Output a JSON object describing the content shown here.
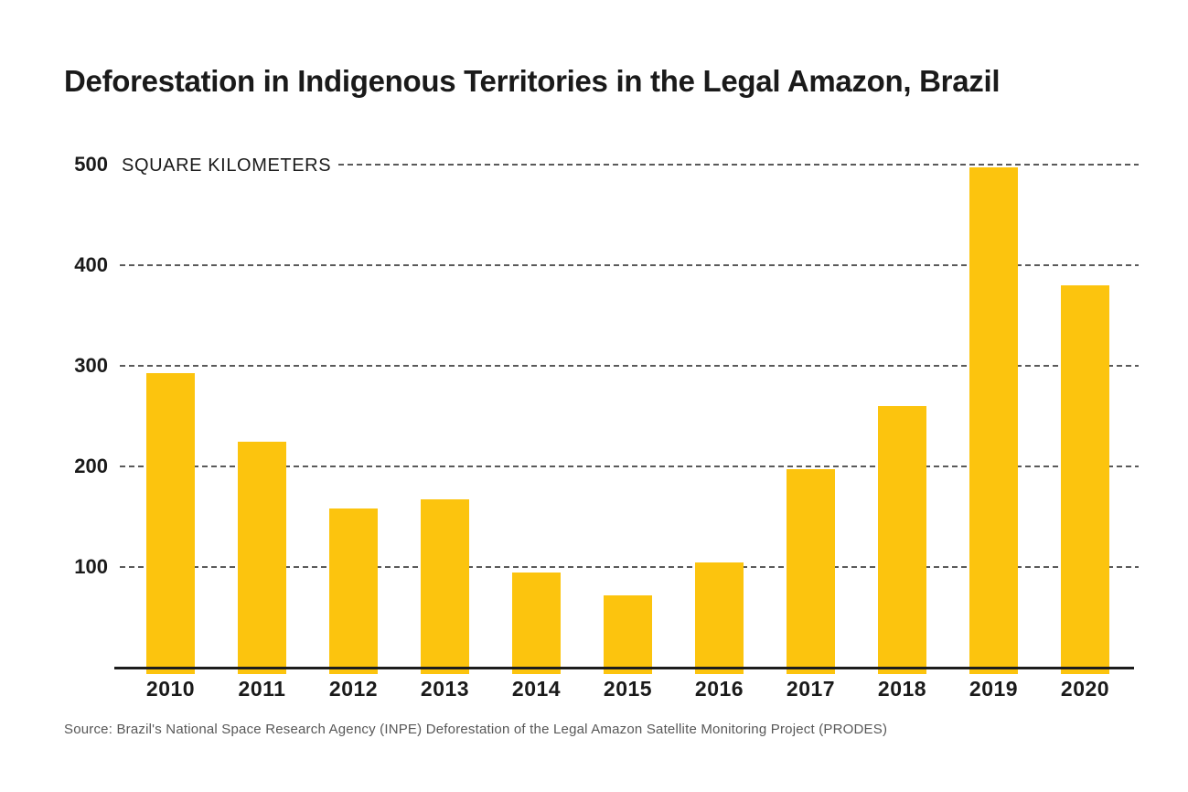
{
  "title": "Deforestation in Indigenous Territories in the Legal Amazon, Brazil",
  "unit_label": "SQUARE KILOMETERS",
  "source": "Source: Brazil's National Space Research Agency (INPE) Deforestation of the Legal Amazon Satellite Monitoring Project (PRODES)",
  "colors": {
    "bar": "#FCC40E",
    "grid": "#5a5a5a",
    "axis": "#1c1c1c",
    "text": "#1a1a1a",
    "source_text": "#575757"
  },
  "chart_data": {
    "type": "bar",
    "title": "Deforestation in Indigenous Territories in the Legal Amazon, Brazil",
    "categories": [
      "2010",
      "2011",
      "2012",
      "2013",
      "2014",
      "2015",
      "2016",
      "2017",
      "2018",
      "2019",
      "2020"
    ],
    "values": [
      293,
      225,
      158,
      167,
      95,
      72,
      105,
      197,
      260,
      497,
      380
    ],
    "xlabel": "",
    "ylabel": "SQUARE KILOMETERS",
    "yticks": [
      500,
      400,
      300,
      200,
      100
    ],
    "ylim": [
      0,
      500
    ],
    "grid": "horizontal-dashed",
    "legend": "none",
    "bar_color": "#FCC40E"
  }
}
